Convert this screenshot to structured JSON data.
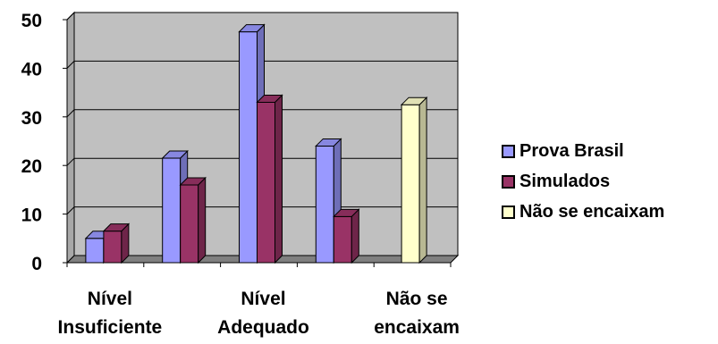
{
  "chart_data": {
    "type": "bar",
    "title": "",
    "xlabel": "",
    "ylabel": "",
    "ylim": [
      0,
      50
    ],
    "yticks": [
      "0",
      "10",
      "20",
      "30",
      "40",
      "50"
    ],
    "grid": true,
    "legend_position": "right",
    "categories": [
      "Nível\nInsuficiente",
      "",
      "Nível\nAdequado",
      "",
      "Não se\nencaixam"
    ],
    "series": [
      {
        "name": "Prova Brasil",
        "color": "#9999ff",
        "values": [
          5,
          21.5,
          47.5,
          24,
          null
        ]
      },
      {
        "name": "Simulados",
        "color": "#993366",
        "values": [
          6.5,
          16,
          33,
          9.5,
          null
        ]
      },
      {
        "name": "Não se encaixam",
        "color": "#ffffcc",
        "values": [
          null,
          null,
          null,
          null,
          32.5
        ]
      }
    ]
  }
}
